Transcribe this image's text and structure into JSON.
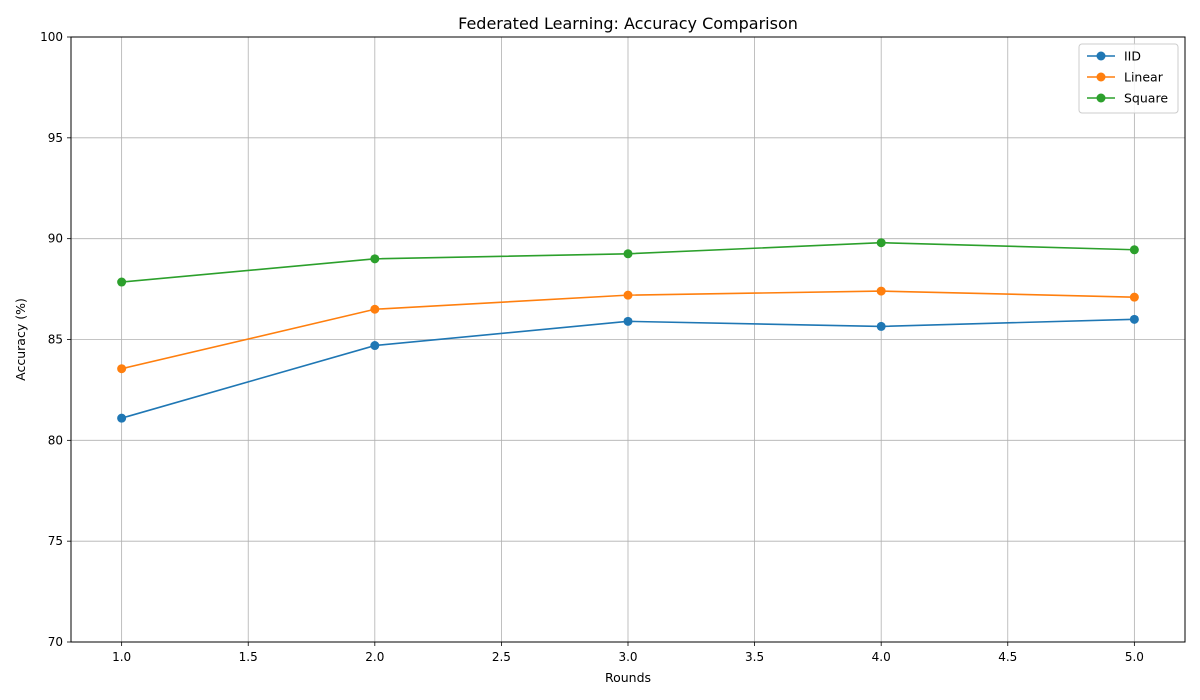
{
  "chart_data": {
    "type": "line",
    "title": "Federated Learning: Accuracy Comparison",
    "xlabel": "Rounds",
    "ylabel": "Accuracy (%)",
    "xlim": [
      0.8,
      5.2
    ],
    "ylim": [
      70,
      100
    ],
    "xticks": [
      "1.0",
      "1.5",
      "2.0",
      "2.5",
      "3.0",
      "3.5",
      "4.0",
      "4.5",
      "5.0"
    ],
    "yticks": [
      "70",
      "75",
      "80",
      "85",
      "90",
      "95",
      "100"
    ],
    "grid": true,
    "legend_position": "top-right",
    "x": [
      1,
      2,
      3,
      4,
      5
    ],
    "series": [
      {
        "name": "IID",
        "color": "#1f77b4",
        "values": [
          81.1,
          84.7,
          85.9,
          85.65,
          86.0
        ]
      },
      {
        "name": "Linear",
        "color": "#ff7f0e",
        "values": [
          83.55,
          86.5,
          87.2,
          87.4,
          87.1
        ]
      },
      {
        "name": "Square",
        "color": "#2ca02c",
        "values": [
          87.85,
          89.0,
          89.25,
          89.8,
          89.45
        ]
      }
    ]
  }
}
